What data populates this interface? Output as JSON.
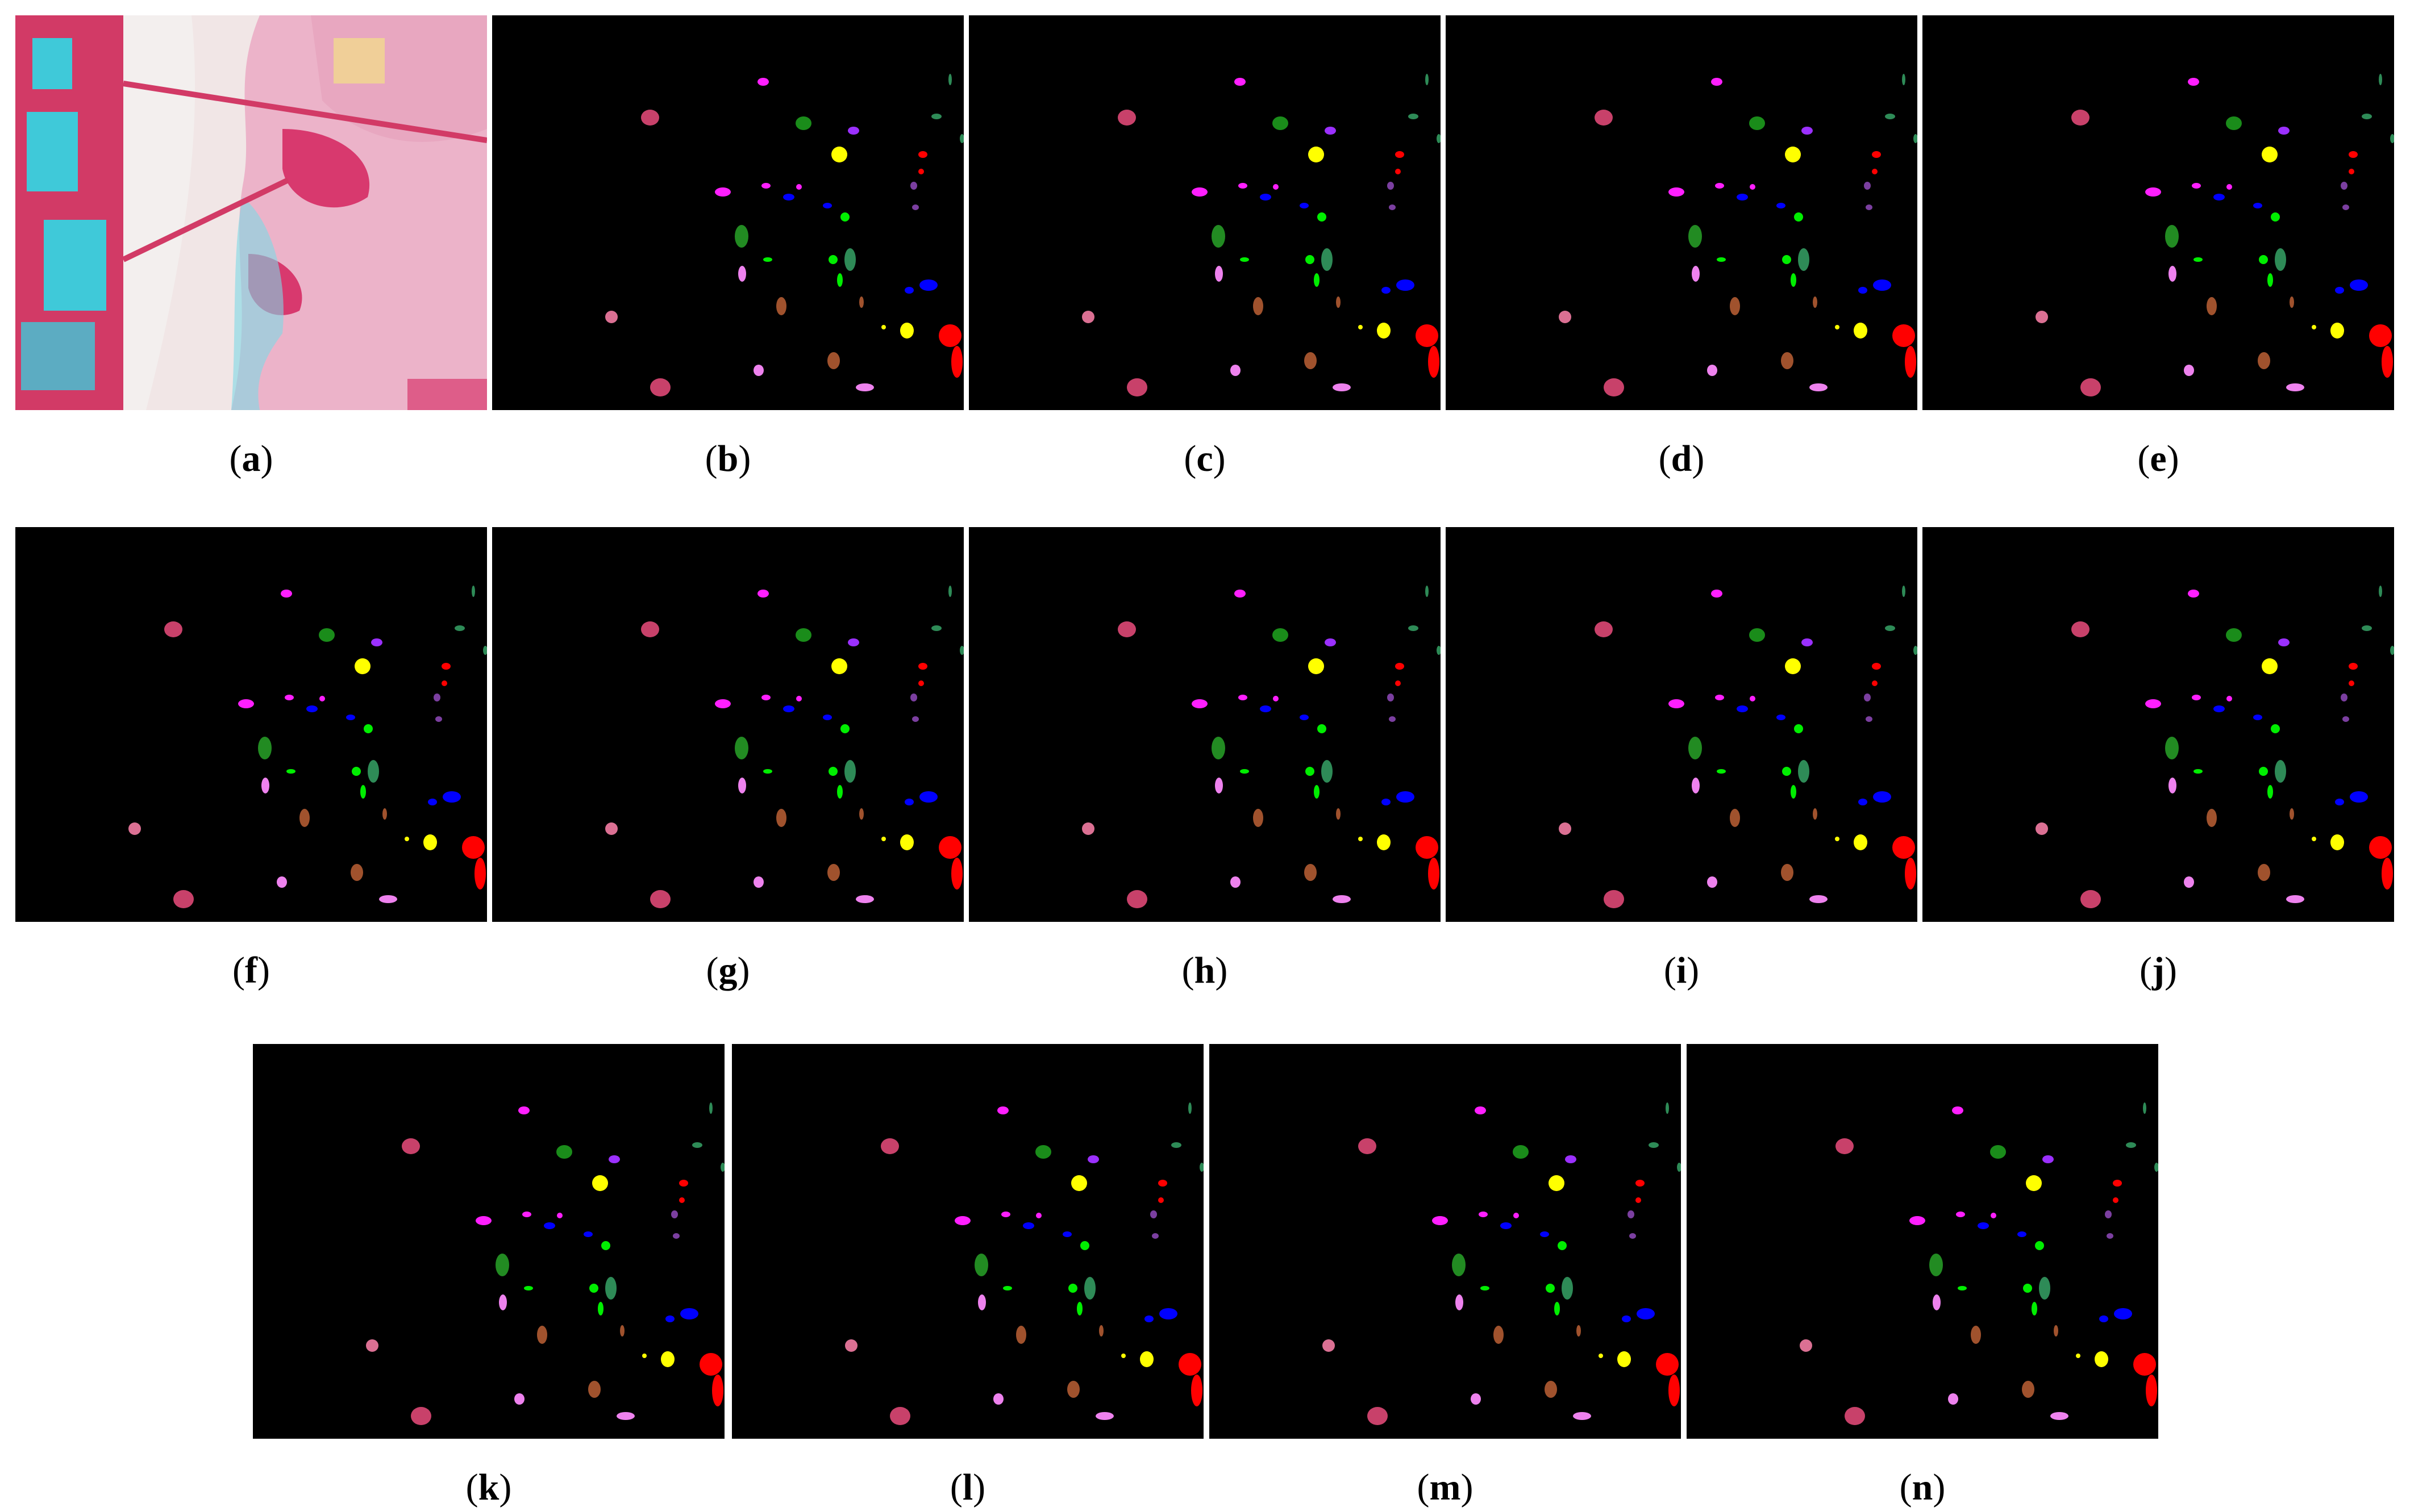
{
  "panels": [
    {
      "id": "a",
      "label": "a",
      "type": "false-color"
    },
    {
      "id": "b",
      "label": "b",
      "type": "map"
    },
    {
      "id": "c",
      "label": "c",
      "type": "map"
    },
    {
      "id": "d",
      "label": "d",
      "type": "map"
    },
    {
      "id": "e",
      "label": "e",
      "type": "map"
    },
    {
      "id": "f",
      "label": "f",
      "type": "map"
    },
    {
      "id": "g",
      "label": "g",
      "type": "map"
    },
    {
      "id": "h",
      "label": "h",
      "type": "map"
    },
    {
      "id": "i",
      "label": "i",
      "type": "map"
    },
    {
      "id": "j",
      "label": "j",
      "type": "map"
    },
    {
      "id": "k",
      "label": "k",
      "type": "map"
    },
    {
      "id": "l",
      "label": "l",
      "type": "map"
    },
    {
      "id": "m",
      "label": "m",
      "type": "map"
    },
    {
      "id": "n",
      "label": "n",
      "type": "map"
    }
  ],
  "class_colors": [
    "#c8416a",
    "#ff1fff",
    "#1a8c1a",
    "#9b30ff",
    "#2e8b57",
    "#ff0000",
    "#ffff00",
    "#0000ff",
    "#00ee00",
    "#a0522d",
    "#ee82ee",
    "#db7093",
    "#7b3fa0",
    "#228b22"
  ]
}
